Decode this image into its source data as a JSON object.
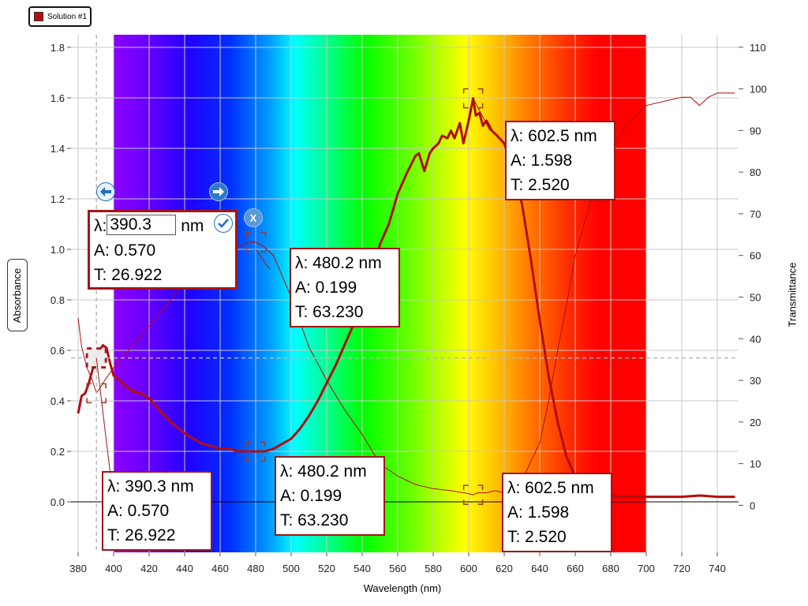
{
  "legend": {
    "label": "Solution #1",
    "color": "#b30e0e"
  },
  "chart_data": {
    "type": "line",
    "xlabel": "Wavelength (nm)",
    "ylabel": "Absorbance",
    "y2label": "Transmittance",
    "xlim": [
      376,
      752
    ],
    "ylim": [
      -0.2,
      1.85
    ],
    "y2lim": [
      -11.3,
      113
    ],
    "xticks": [
      380,
      400,
      420,
      440,
      460,
      480,
      500,
      520,
      540,
      560,
      580,
      600,
      620,
      640,
      660,
      680,
      700,
      720,
      740
    ],
    "yticks": [
      0.0,
      0.2,
      0.4,
      0.6,
      0.8,
      1.0,
      1.2,
      1.4,
      1.6,
      1.8
    ],
    "yticklabels": [
      "0.0",
      "0.2",
      "0.4",
      "0.6",
      "0.8",
      "1.0",
      "1.2",
      "1.4",
      "1.6",
      "1.8"
    ],
    "y2ticks": [
      0,
      10,
      20,
      30,
      40,
      50,
      60,
      70,
      80,
      90,
      100,
      110
    ],
    "spectrum_band": [
      400,
      700
    ],
    "grid": true,
    "cursor": {
      "x": 390.3,
      "y": 0.57
    },
    "series": [
      {
        "name": "Solution #1",
        "axis": "left",
        "color": "#b30e0e",
        "x": [
          380,
          382,
          384,
          386,
          388,
          390,
          392,
          394,
          396,
          398,
          400,
          405,
          410,
          415,
          420,
          425,
          430,
          435,
          440,
          445,
          450,
          455,
          460,
          465,
          470,
          475,
          480,
          485,
          490,
          495,
          500,
          505,
          510,
          515,
          520,
          525,
          530,
          535,
          540,
          545,
          550,
          555,
          560,
          565,
          570,
          572,
          575,
          578,
          580,
          583,
          585,
          588,
          590,
          592,
          595,
          597,
          600,
          602.5,
          604,
          606,
          608,
          610,
          613,
          616,
          620,
          625,
          630,
          635,
          640,
          645,
          650,
          655,
          660,
          665,
          670,
          675,
          680,
          685,
          690,
          695,
          700,
          710,
          720,
          730,
          740,
          750
        ],
        "values": [
          0.35,
          0.42,
          0.43,
          0.47,
          0.52,
          0.57,
          0.6,
          0.62,
          0.61,
          0.55,
          0.5,
          0.47,
          0.44,
          0.43,
          0.41,
          0.37,
          0.33,
          0.3,
          0.27,
          0.25,
          0.23,
          0.22,
          0.21,
          0.21,
          0.2,
          0.2,
          0.199,
          0.2,
          0.21,
          0.23,
          0.25,
          0.29,
          0.34,
          0.4,
          0.47,
          0.54,
          0.62,
          0.7,
          0.77,
          0.86,
          1.02,
          1.1,
          1.22,
          1.3,
          1.37,
          1.38,
          1.31,
          1.38,
          1.4,
          1.42,
          1.45,
          1.44,
          1.47,
          1.44,
          1.5,
          1.42,
          1.51,
          1.598,
          1.53,
          1.54,
          1.49,
          1.51,
          1.47,
          1.45,
          1.42,
          1.32,
          1.18,
          0.96,
          0.72,
          0.5,
          0.32,
          0.18,
          0.1,
          0.06,
          0.04,
          0.03,
          0.025,
          0.02,
          0.02,
          0.02,
          0.02,
          0.02,
          0.02,
          0.025,
          0.02,
          0.02
        ]
      },
      {
        "name": "Transmittance",
        "axis": "right",
        "color": "#b30e0e",
        "x": [
          380,
          382,
          385,
          388,
          390.3,
          392,
          395,
          400,
          410,
          420,
          430,
          440,
          450,
          460,
          470,
          475,
          480.2,
          485,
          490,
          495,
          500,
          510,
          520,
          530,
          540,
          550,
          560,
          570,
          580,
          590,
          600,
          602.5,
          605,
          610,
          615,
          620,
          625,
          630,
          640,
          645,
          650,
          655,
          660,
          670,
          680,
          690,
          700,
          710,
          720,
          725,
          730,
          735,
          740,
          750
        ],
        "values": [
          45,
          38,
          33,
          30,
          26.9,
          28,
          30,
          33,
          38,
          43,
          48,
          54,
          58,
          61,
          62,
          63,
          63.2,
          62,
          60,
          55,
          50,
          38,
          30,
          23,
          17,
          10,
          7,
          5,
          4,
          3.5,
          2.8,
          2.5,
          3,
          3,
          3.5,
          3,
          4,
          6,
          15,
          25,
          37,
          48,
          60,
          75,
          85,
          92,
          96,
          97,
          98,
          98,
          96,
          98,
          99,
          99
        ]
      }
    ]
  },
  "markers": {
    "m390": {
      "label": "λ: 390.3 nm",
      "a": "A: 0.570",
      "t": "T: 26.922",
      "edit_prefix": "λ:",
      "edit_value": "390.3",
      "edit_unit": "nm"
    },
    "m480": {
      "label": "λ: 480.2 nm",
      "a": "A: 0.199",
      "t": "T: 63.230"
    },
    "m602": {
      "label": "λ: 602.5 nm",
      "a": "A: 1.598",
      "t": "T: 2.520"
    }
  },
  "buttons": {
    "prev_icon": "arrow-left-icon",
    "next_icon": "arrow-right-icon",
    "ok_icon": "check-icon",
    "close_label": "X"
  }
}
